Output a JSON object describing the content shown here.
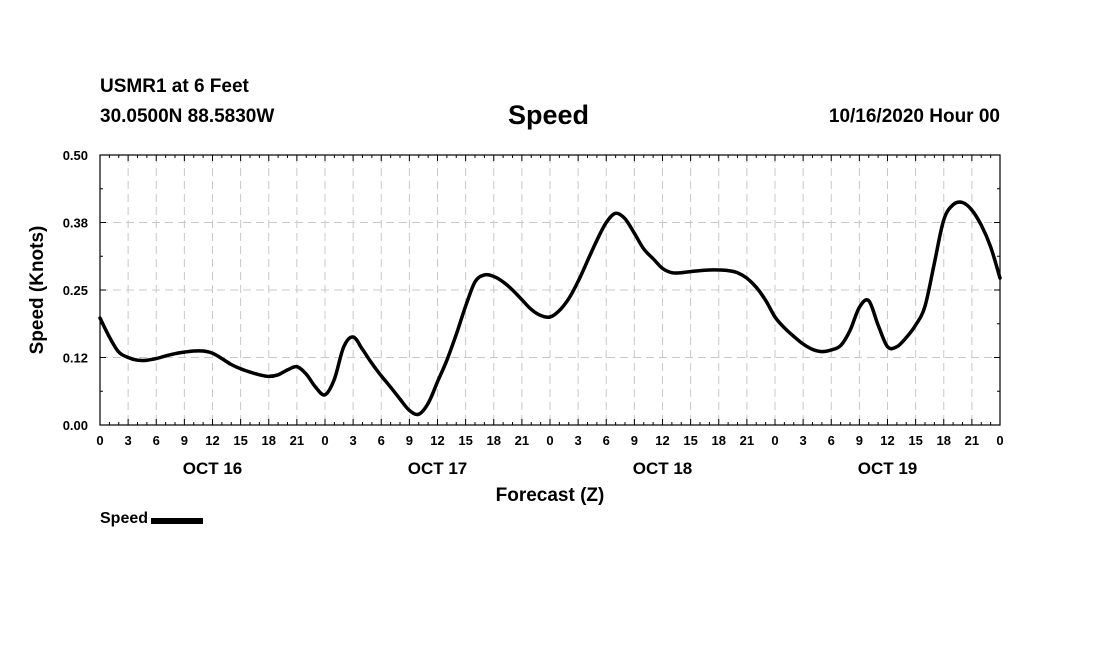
{
  "header": {
    "station": "USMR1 at 6 Feet",
    "coords": "30.0500N 88.5830W",
    "title": "Speed",
    "datetime": "10/16/2020 Hour 00"
  },
  "legend": {
    "label": "Speed"
  },
  "colors": {
    "line": "#000000",
    "grid": "#c8c8c8",
    "frame": "#000000"
  },
  "chart_data": {
    "type": "line",
    "title": "Speed",
    "xlabel": "Forecast (Z)",
    "ylabel": "Speed (Knots)",
    "xlim": [
      0,
      96
    ],
    "ylim": [
      0,
      0.5
    ],
    "grid": true,
    "yticks": [
      {
        "value": 0.0,
        "label": "0.00"
      },
      {
        "value": 0.125,
        "label": "0.12"
      },
      {
        "value": 0.25,
        "label": "0.25"
      },
      {
        "value": 0.375,
        "label": "0.38"
      },
      {
        "value": 0.5,
        "label": "0.50"
      }
    ],
    "xticks": [
      {
        "value": 0,
        "label": "0"
      },
      {
        "value": 3,
        "label": "3"
      },
      {
        "value": 6,
        "label": "6"
      },
      {
        "value": 9,
        "label": "9"
      },
      {
        "value": 12,
        "label": "12"
      },
      {
        "value": 15,
        "label": "15"
      },
      {
        "value": 18,
        "label": "18"
      },
      {
        "value": 21,
        "label": "21"
      },
      {
        "value": 24,
        "label": "0"
      },
      {
        "value": 27,
        "label": "3"
      },
      {
        "value": 30,
        "label": "6"
      },
      {
        "value": 33,
        "label": "9"
      },
      {
        "value": 36,
        "label": "12"
      },
      {
        "value": 39,
        "label": "15"
      },
      {
        "value": 42,
        "label": "18"
      },
      {
        "value": 45,
        "label": "21"
      },
      {
        "value": 48,
        "label": "0"
      },
      {
        "value": 51,
        "label": "3"
      },
      {
        "value": 54,
        "label": "6"
      },
      {
        "value": 57,
        "label": "9"
      },
      {
        "value": 60,
        "label": "12"
      },
      {
        "value": 63,
        "label": "15"
      },
      {
        "value": 66,
        "label": "18"
      },
      {
        "value": 69,
        "label": "21"
      },
      {
        "value": 72,
        "label": "0"
      },
      {
        "value": 75,
        "label": "3"
      },
      {
        "value": 78,
        "label": "6"
      },
      {
        "value": 81,
        "label": "9"
      },
      {
        "value": 84,
        "label": "12"
      },
      {
        "value": 87,
        "label": "15"
      },
      {
        "value": 90,
        "label": "18"
      },
      {
        "value": 93,
        "label": "21"
      },
      {
        "value": 96,
        "label": "0"
      }
    ],
    "day_labels": [
      {
        "value": 12,
        "label": "OCT 16"
      },
      {
        "value": 36,
        "label": "OCT 17"
      },
      {
        "value": 60,
        "label": "OCT 18"
      },
      {
        "value": 84,
        "label": "OCT 19"
      }
    ],
    "series": [
      {
        "name": "Speed",
        "x": [
          0,
          1,
          2,
          3,
          4,
          5,
          6,
          7,
          8,
          9,
          10,
          11,
          12,
          13,
          14,
          15,
          16,
          17,
          18,
          19,
          20,
          21,
          22,
          23,
          24,
          25,
          26,
          27,
          28,
          29,
          30,
          31,
          32,
          33,
          34,
          35,
          36,
          37,
          38,
          39,
          40,
          41,
          42,
          43,
          44,
          45,
          46,
          47,
          48,
          49,
          50,
          51,
          52,
          53,
          54,
          55,
          56,
          57,
          58,
          59,
          60,
          61,
          62,
          63,
          64,
          65,
          66,
          67,
          68,
          69,
          70,
          71,
          72,
          73,
          74,
          75,
          76,
          77,
          78,
          79,
          80,
          81,
          82,
          83,
          84,
          85,
          86,
          87,
          88,
          89,
          90,
          91,
          92,
          93,
          94,
          95,
          96
        ],
        "values": [
          0.198,
          0.163,
          0.135,
          0.125,
          0.12,
          0.12,
          0.123,
          0.128,
          0.132,
          0.135,
          0.137,
          0.137,
          0.133,
          0.123,
          0.112,
          0.104,
          0.098,
          0.093,
          0.09,
          0.093,
          0.102,
          0.108,
          0.094,
          0.07,
          0.056,
          0.085,
          0.145,
          0.163,
          0.14,
          0.114,
          0.091,
          0.07,
          0.048,
          0.027,
          0.02,
          0.04,
          0.08,
          0.12,
          0.168,
          0.22,
          0.265,
          0.278,
          0.275,
          0.265,
          0.25,
          0.232,
          0.214,
          0.203,
          0.2,
          0.212,
          0.234,
          0.266,
          0.304,
          0.342,
          0.375,
          0.392,
          0.382,
          0.355,
          0.326,
          0.308,
          0.29,
          0.282,
          0.282,
          0.284,
          0.286,
          0.287,
          0.287,
          0.286,
          0.282,
          0.272,
          0.255,
          0.231,
          0.2,
          0.18,
          0.164,
          0.15,
          0.14,
          0.136,
          0.139,
          0.147,
          0.175,
          0.218,
          0.23,
          0.185,
          0.145,
          0.145,
          0.162,
          0.185,
          0.22,
          0.3,
          0.38,
          0.408,
          0.412,
          0.398,
          0.37,
          0.33,
          0.272
        ]
      }
    ]
  }
}
